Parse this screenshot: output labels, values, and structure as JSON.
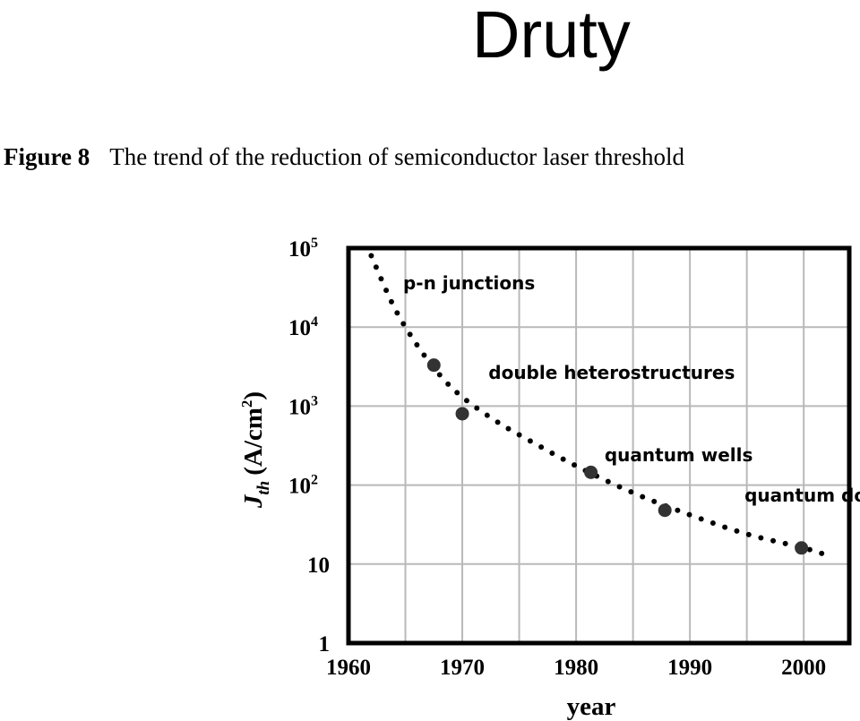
{
  "slide": {
    "title": "Druty"
  },
  "figure": {
    "number": "Figure 8",
    "caption": "The trend of the reduction of semiconductor laser threshold"
  },
  "chart_data": {
    "type": "scatter",
    "title": "",
    "xlabel": "year",
    "ylabel_main": "J",
    "ylabel_sub": "th",
    "ylabel_unit": "(A/cm",
    "ylabel_sup": "2",
    "ylabel_close": ")",
    "xlim": [
      1960,
      2004
    ],
    "ylim": [
      1,
      100000
    ],
    "y_scale": "log",
    "grid": true,
    "x_ticks": [
      1960,
      1970,
      1980,
      1990,
      2000
    ],
    "x_tick_labels": [
      "1960",
      "1970",
      "1980",
      "1990",
      "2000"
    ],
    "y_ticks": [
      {
        "value": 100000,
        "base": "10",
        "sup": "5"
      },
      {
        "value": 10000,
        "base": "10",
        "sup": "4"
      },
      {
        "value": 1000,
        "base": "10",
        "sup": "3"
      },
      {
        "value": 100,
        "base": "10",
        "sup": "2"
      },
      {
        "value": 10,
        "base": "10",
        "sup": ""
      },
      {
        "value": 1,
        "base": "1",
        "sup": ""
      }
    ],
    "series": [
      {
        "type": "scatter",
        "points": [
          {
            "x": 1967.5,
            "y": 3300
          },
          {
            "x": 1970.0,
            "y": 800
          },
          {
            "x": 1981.3,
            "y": 145
          },
          {
            "x": 1987.8,
            "y": 48
          },
          {
            "x": 1999.8,
            "y": 16
          }
        ]
      },
      {
        "type": "trend-dotted",
        "points": [
          {
            "x": 1962.0,
            "y": 80000
          },
          {
            "x": 1964.0,
            "y": 18000
          },
          {
            "x": 1966.0,
            "y": 6000
          },
          {
            "x": 1968.0,
            "y": 2500
          },
          {
            "x": 1970.0,
            "y": 1300
          },
          {
            "x": 1973.0,
            "y": 640
          },
          {
            "x": 1976.0,
            "y": 360
          },
          {
            "x": 1980.0,
            "y": 175
          },
          {
            "x": 1985.0,
            "y": 80
          },
          {
            "x": 1990.0,
            "y": 42
          },
          {
            "x": 1995.0,
            "y": 24
          },
          {
            "x": 2000.0,
            "y": 16
          },
          {
            "x": 2002.0,
            "y": 13
          }
        ]
      }
    ],
    "annotations": [
      {
        "text": "p-n junctions",
        "x": 1964.8,
        "y": 30000
      },
      {
        "text": "double heterostructures",
        "x": 1972.3,
        "y": 2200
      },
      {
        "text": "quantum wells",
        "x": 1982.5,
        "y": 200
      },
      {
        "text": "quantum dots",
        "x": 1994.8,
        "y": 62
      }
    ]
  }
}
